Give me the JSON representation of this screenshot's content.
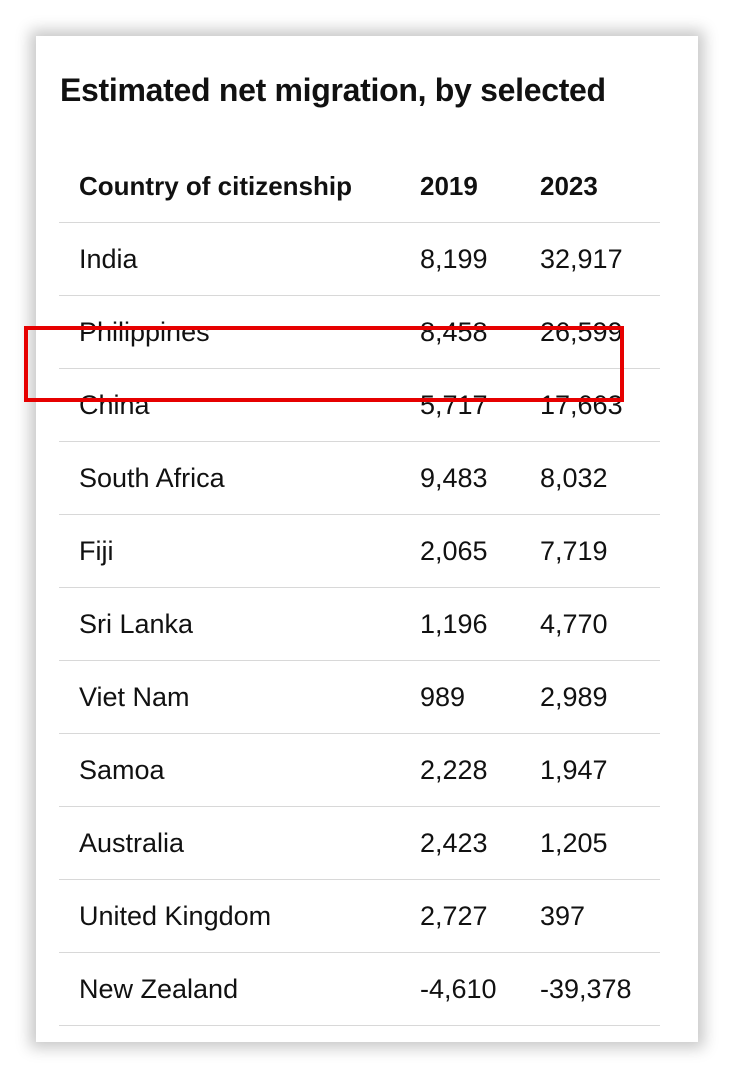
{
  "title": "Estimated net migration, by selected",
  "table": {
    "headers": {
      "country": "Country of citizenship",
      "y2019": "2019",
      "y2023": "2023"
    },
    "rows": [
      {
        "country": "India",
        "y2019": "8,199",
        "y2023": "32,917"
      },
      {
        "country": "Philippines",
        "y2019": "8,458",
        "y2023": "26,599"
      },
      {
        "country": "China",
        "y2019": "5,717",
        "y2023": "17,663"
      },
      {
        "country": "South Africa",
        "y2019": "9,483",
        "y2023": "8,032"
      },
      {
        "country": "Fiji",
        "y2019": "2,065",
        "y2023": "7,719"
      },
      {
        "country": "Sri Lanka",
        "y2019": "1,196",
        "y2023": "4,770"
      },
      {
        "country": "Viet Nam",
        "y2019": "989",
        "y2023": "2,989"
      },
      {
        "country": "Samoa",
        "y2019": "2,228",
        "y2023": "1,947"
      },
      {
        "country": "Australia",
        "y2019": "2,423",
        "y2023": "1,205"
      },
      {
        "country": "United Kingdom",
        "y2019": "2,727",
        "y2023": "397"
      },
      {
        "country": "New Zealand",
        "y2019": "-4,610",
        "y2023": "-39,378"
      }
    ]
  },
  "highlight": {
    "row_country": "China",
    "color": "#e60000"
  }
}
